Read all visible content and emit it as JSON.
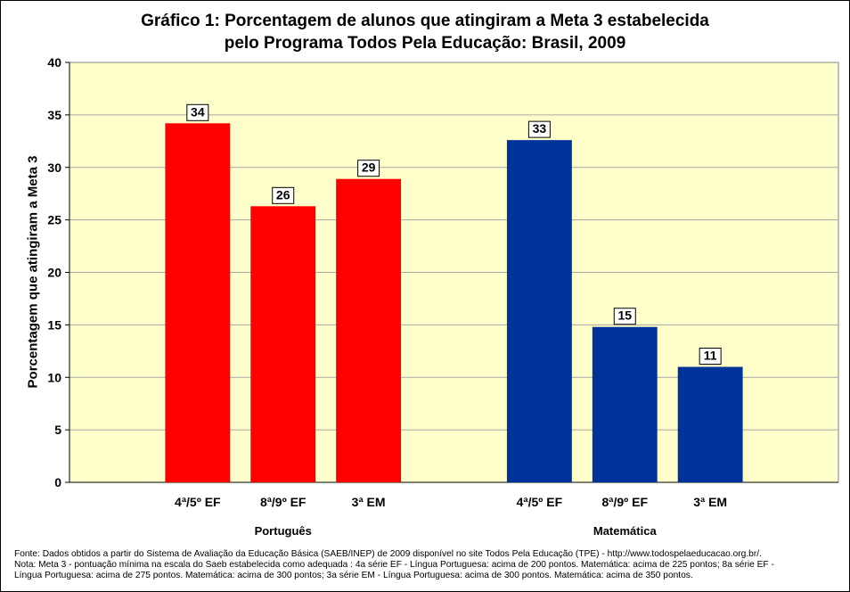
{
  "title_line1": "Gráfico 1: Porcentagem de alunos que atingiram a Meta 3 estabelecida",
  "title_line2": "pelo Programa Todos Pela Educação: Brasil, 2009",
  "footer": {
    "line1": "Fonte: Dados obtidos a partir do  Sistema de Avaliação da Educação Básica (SAEB/INEP) de 2009 disponível no site Todos Pela Educação (TPE)  - http://www.todospelaeducacao.org.br/.",
    "line2": "Nota: Meta 3 - pontuação mínima na escala do Saeb estabelecida como adequada : 4a série EF - Língua Portuguesa: acima de 200 pontos. Matemática: acima de 225 pontos;  8a série EF -",
    "line3": "Língua Portuguesa: acima de 275 pontos. Matemática: acima de 300 pontos; 3a série EM - Língua Portuguesa: acima de 300 pontos. Matemática: acima de 350 pontos."
  },
  "chart_data": {
    "type": "bar",
    "title": "Gráfico 1: Porcentagem de alunos que atingiram a Meta 3 estabelecida pelo Programa Todos Pela Educação: Brasil, 2009",
    "ylabel": "Porcentagem que atingiram a Meta 3",
    "ylim": [
      0,
      40
    ],
    "yticks": [
      0,
      5,
      10,
      15,
      20,
      25,
      30,
      35,
      40
    ],
    "grid": true,
    "groups": [
      {
        "name": "Português",
        "color": "#ff0000",
        "categories": [
          "4ª/5º EF",
          "8ª/9º EF",
          "3ª EM"
        ],
        "values": [
          34.2,
          26.3,
          28.9
        ],
        "labels": [
          "34",
          "26",
          "29"
        ]
      },
      {
        "name": "Matemática",
        "color": "#003399",
        "categories": [
          "4ª/5º EF",
          "8ª/9º EF",
          "3ª EM"
        ],
        "values": [
          32.6,
          14.8,
          11.0
        ],
        "labels": [
          "33",
          "15",
          "11"
        ]
      }
    ],
    "plot_background": "#ffffcc",
    "gridline_color": "#a6a6a6"
  }
}
